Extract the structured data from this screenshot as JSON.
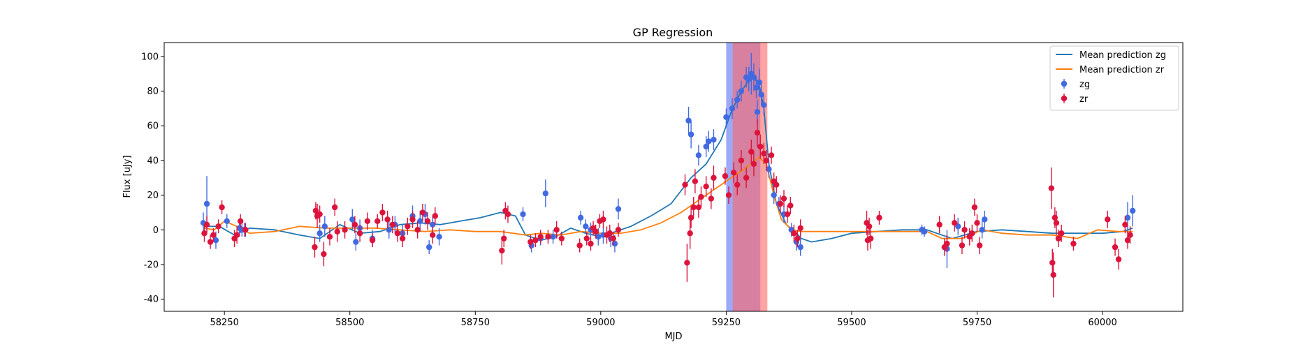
{
  "chart_data": {
    "type": "scatter",
    "title": "GP Regression",
    "xlabel": "MJD",
    "ylabel": "Flux [uJy]",
    "xlim": [
      58130,
      60160
    ],
    "ylim": [
      -47,
      108
    ],
    "xticks": [
      58250,
      58500,
      58750,
      59000,
      59250,
      59500,
      59750,
      60000
    ],
    "yticks": [
      -40,
      -20,
      0,
      20,
      40,
      60,
      80,
      100
    ],
    "grid": false,
    "legend_position": "top-right",
    "colors": {
      "mean_zg": "#1f77b4",
      "mean_zr": "#ff7f0e",
      "zg": "#4169e1",
      "zr": "#dc143c",
      "band_blue": "#5a6ff0",
      "band_red": "#ff6666"
    },
    "shaded_regions": [
      {
        "x0": 59250,
        "x1": 59318,
        "color": "#5a6ff0",
        "opacity": 0.6
      },
      {
        "x0": 59263,
        "x1": 59332,
        "color": "#ff6666",
        "opacity": 0.6
      }
    ],
    "series": [
      {
        "name": "Mean prediction zg",
        "kind": "line",
        "color": "#1f77b4",
        "x": [
          58210,
          58240,
          58270,
          58300,
          58350,
          58400,
          58440,
          58480,
          58520,
          58560,
          58600,
          58640,
          58680,
          58720,
          58760,
          58800,
          58830,
          58850,
          58880,
          58910,
          58940,
          58970,
          59000,
          59030,
          59060,
          59100,
          59140,
          59180,
          59210,
          59240,
          59260,
          59280,
          59300,
          59315,
          59325,
          59335,
          59350,
          59370,
          59390,
          59400,
          59420,
          59460,
          59500,
          59550,
          59600,
          59650,
          59700,
          59750,
          59800,
          59850,
          59900,
          59950,
          60000,
          60040,
          60060
        ],
        "y": [
          2,
          2,
          -3,
          1,
          0,
          -3,
          -5,
          3,
          -2,
          -1,
          3,
          4,
          3,
          5,
          7,
          10,
          8,
          -3,
          -6,
          -4,
          1,
          -2,
          -4,
          -1,
          2,
          8,
          15,
          30,
          38,
          52,
          68,
          80,
          88,
          85,
          70,
          38,
          15,
          3,
          -2,
          -5,
          -7,
          -5,
          -2,
          -1,
          0,
          0,
          -5,
          -1,
          0,
          -1,
          -2,
          -2,
          -2,
          -1,
          1
        ]
      },
      {
        "name": "Mean prediction zr",
        "kind": "line",
        "color": "#ff7f0e",
        "x": [
          58210,
          58230,
          58250,
          58275,
          58300,
          58350,
          58400,
          58450,
          58500,
          58550,
          58600,
          58650,
          58700,
          58750,
          58800,
          58850,
          58880,
          58920,
          58960,
          59000,
          59040,
          59080,
          59120,
          59160,
          59200,
          59230,
          59260,
          59280,
          59300,
          59315,
          59330,
          59345,
          59360,
          59380,
          59400,
          59450,
          59500,
          59550,
          59600,
          59650,
          59680,
          59720,
          59760,
          59800,
          59850,
          59900,
          59950,
          59990,
          60030,
          60060
        ],
        "y": [
          1,
          0,
          5,
          2,
          -2,
          -1,
          2,
          1,
          1,
          1,
          0,
          -1,
          0,
          -1,
          -1,
          -3,
          -2,
          -3,
          -1,
          -2,
          -2,
          0,
          4,
          10,
          18,
          24,
          30,
          34,
          38,
          42,
          38,
          20,
          6,
          0,
          -1,
          -1,
          -1,
          -1,
          -1,
          -1,
          -5,
          -5,
          0,
          -2,
          -3,
          -3,
          -5,
          0,
          -1,
          -1
        ]
      },
      {
        "name": "zg",
        "kind": "errorbar",
        "color": "#4169e1",
        "x": [
          58208,
          58215,
          58233,
          58255,
          58280,
          58285,
          58290,
          58440,
          58450,
          58505,
          58512,
          58520,
          58545,
          58578,
          58590,
          58605,
          58625,
          58640,
          58650,
          58658,
          58665,
          58678,
          58845,
          58862,
          58880,
          58890,
          58905,
          58960,
          58970,
          58980,
          58995,
          59005,
          59020,
          59028,
          59035,
          59175,
          59180,
          59195,
          59210,
          59215,
          59225,
          59250,
          59262,
          59272,
          59280,
          59290,
          59295,
          59300,
          59305,
          59310,
          59312,
          59316,
          59320,
          59325,
          59335,
          59345,
          59355,
          59365,
          59380,
          59390,
          59398,
          59640,
          59645,
          59690,
          59712,
          59760,
          59765,
          60050,
          60060
        ],
        "y": [
          4,
          15,
          -6,
          5,
          1,
          0,
          0,
          -2,
          2,
          6,
          -7,
          1,
          -5,
          0,
          3,
          -2,
          8,
          5,
          9,
          -10,
          3,
          -4,
          9,
          -9,
          -5,
          21,
          -4,
          7,
          2,
          0,
          -4,
          -3,
          -5,
          -8,
          12,
          63,
          55,
          43,
          48,
          51,
          52,
          65,
          70,
          75,
          80,
          88,
          87,
          90,
          88,
          82,
          68,
          85,
          78,
          72,
          35,
          20,
          15,
          9,
          0,
          -7,
          -10,
          0,
          -1,
          -11,
          2,
          0,
          6,
          7,
          11
        ],
        "err": [
          6,
          16,
          5,
          4,
          5,
          4,
          4,
          5,
          6,
          6,
          5,
          5,
          5,
          5,
          5,
          5,
          6,
          6,
          6,
          4,
          5,
          5,
          4,
          4,
          4,
          8,
          4,
          4,
          4,
          4,
          5,
          5,
          5,
          5,
          6,
          8,
          8,
          6,
          6,
          6,
          6,
          5,
          6,
          5,
          6,
          6,
          7,
          12,
          8,
          6,
          7,
          8,
          6,
          6,
          5,
          5,
          4,
          5,
          4,
          5,
          5,
          3,
          3,
          11,
          5,
          5,
          5,
          9,
          9
        ]
      },
      {
        "name": "zr",
        "kind": "errorbar",
        "color": "#dc143c",
        "x": [
          58210,
          58215,
          58222,
          58228,
          58238,
          58245,
          58270,
          58275,
          58282,
          58292,
          58430,
          58432,
          58435,
          58440,
          58448,
          58460,
          58470,
          58475,
          58490,
          58510,
          58520,
          58535,
          58545,
          58555,
          58565,
          58575,
          58585,
          58595,
          58605,
          58615,
          58625,
          58635,
          58645,
          58655,
          58665,
          58670,
          58803,
          58807,
          58810,
          58815,
          58860,
          58870,
          58880,
          58895,
          58912,
          58922,
          58958,
          58972,
          58980,
          58985,
          58990,
          58998,
          59005,
          59012,
          59018,
          59025,
          59035,
          59168,
          59172,
          59178,
          59180,
          59185,
          59188,
          59195,
          59200,
          59210,
          59220,
          59225,
          59248,
          59255,
          59265,
          59272,
          59280,
          59290,
          59300,
          59305,
          59312,
          59318,
          59325,
          59330,
          59340,
          59345,
          59350,
          59358,
          59365,
          59372,
          59378,
          59385,
          59392,
          59398,
          59530,
          59532,
          59535,
          59538,
          59555,
          59675,
          59685,
          59690,
          59705,
          59720,
          59725,
          59735,
          59740,
          59745,
          59750,
          59755,
          59898,
          59900,
          59902,
          59905,
          59908,
          59912,
          59918,
          59942,
          60010,
          60025,
          60032,
          60045,
          60050,
          60055
        ],
        "y": [
          -2,
          3,
          -7,
          -3,
          2,
          13,
          -5,
          -3,
          5,
          0,
          -10,
          11,
          8,
          9,
          -14,
          -4,
          13,
          -1,
          0,
          3,
          -2,
          5,
          -6,
          5,
          10,
          6,
          3,
          -2,
          -5,
          2,
          6,
          0,
          10,
          5,
          -3,
          8,
          -12,
          -5,
          11,
          9,
          -7,
          -6,
          -4,
          -4,
          0,
          -5,
          -9,
          -5,
          -8,
          1,
          -1,
          5,
          6,
          -3,
          -2,
          -5,
          0,
          26,
          -19,
          -2,
          7,
          13,
          28,
          13,
          19,
          25,
          18,
          30,
          31,
          20,
          33,
          26,
          40,
          30,
          45,
          38,
          56,
          48,
          44,
          40,
          43,
          28,
          26,
          15,
          18,
          9,
          14,
          -2,
          -5,
          1,
          4,
          -6,
          2,
          -5,
          7,
          3,
          -10,
          -8,
          4,
          -9,
          0,
          -4,
          -2,
          13,
          4,
          -9,
          24,
          -19,
          -26,
          7,
          4,
          -5,
          -2,
          -8,
          6,
          -10,
          -17,
          3,
          -6,
          -3
        ],
        "err": [
          5,
          5,
          4,
          4,
          4,
          4,
          5,
          5,
          4,
          4,
          6,
          5,
          7,
          5,
          7,
          5,
          5,
          6,
          5,
          5,
          5,
          5,
          4,
          4,
          5,
          5,
          5,
          5,
          5,
          5,
          5,
          5,
          5,
          5,
          5,
          5,
          8,
          5,
          5,
          5,
          4,
          4,
          4,
          4,
          5,
          4,
          4,
          4,
          4,
          4,
          4,
          4,
          5,
          5,
          5,
          4,
          4,
          6,
          11,
          9,
          6,
          6,
          7,
          6,
          6,
          6,
          6,
          7,
          5,
          5,
          6,
          6,
          6,
          6,
          7,
          7,
          8,
          7,
          6,
          6,
          5,
          5,
          5,
          5,
          5,
          5,
          5,
          5,
          5,
          5,
          7,
          6,
          5,
          6,
          4,
          5,
          5,
          5,
          5,
          5,
          5,
          5,
          5,
          5,
          5,
          5,
          12,
          8,
          13,
          6,
          7,
          5,
          5,
          4,
          5,
          5,
          6,
          5,
          5,
          5
        ]
      }
    ]
  }
}
